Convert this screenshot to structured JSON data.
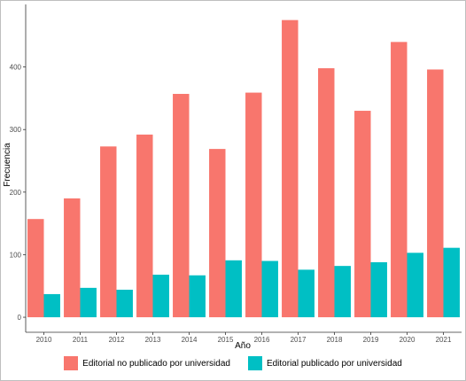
{
  "chart_data": {
    "type": "bar",
    "xlabel": "Año",
    "ylabel": "Frecuencia",
    "categories": [
      "2010",
      "2011",
      "2012",
      "2013",
      "2014",
      "2015",
      "2016",
      "2017",
      "2018",
      "2019",
      "2020",
      "2021"
    ],
    "series": [
      {
        "name": "Editorial no publicado por universidad",
        "color": "#F8766D",
        "values": [
          157,
          190,
          273,
          292,
          357,
          269,
          359,
          475,
          398,
          330,
          440,
          396
        ]
      },
      {
        "name": "Editorial publicado por universidad",
        "color": "#00BFC4",
        "values": [
          37,
          47,
          44,
          68,
          67,
          91,
          90,
          76,
          82,
          88,
          103,
          111
        ]
      }
    ],
    "yticks": [
      0,
      100,
      200,
      300,
      400
    ],
    "ylim": [
      -24,
      500
    ],
    "grid": false,
    "legend_position": "bottom"
  }
}
